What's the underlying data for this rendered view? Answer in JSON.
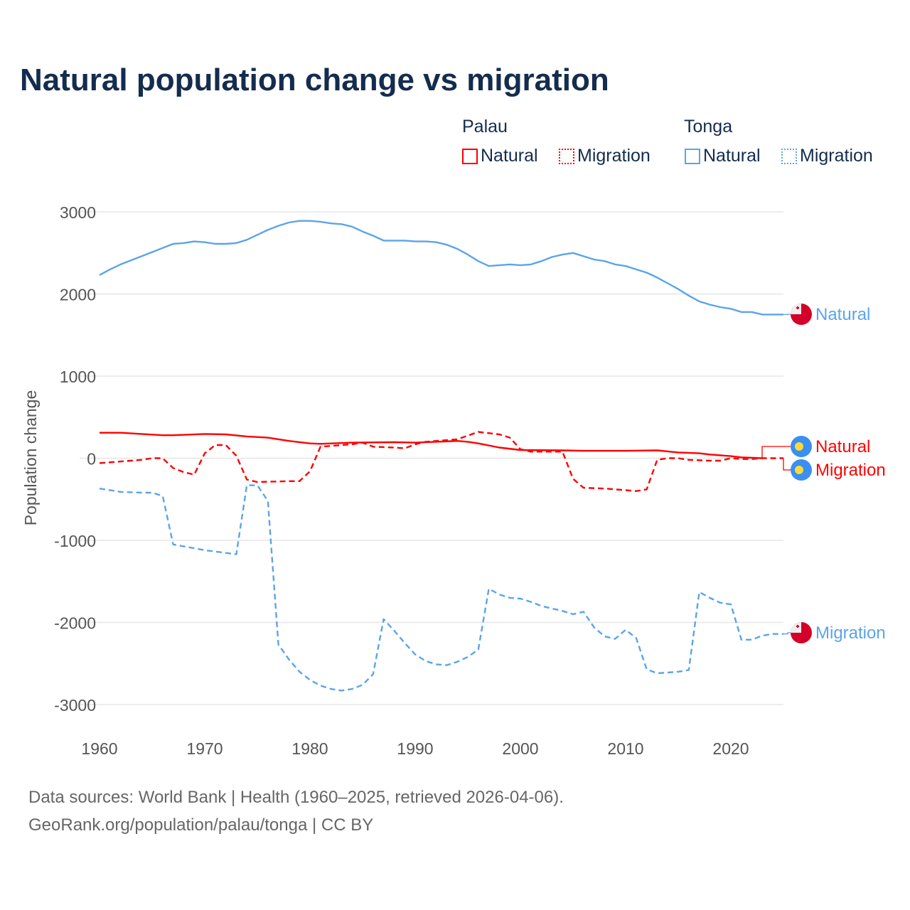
{
  "title": "Natural population change vs migration",
  "legend": {
    "groups": [
      {
        "name": "Palau",
        "items": [
          "Natural",
          "Migration"
        ],
        "color": "#ff0000"
      },
      {
        "name": "Tonga",
        "items": [
          "Natural",
          "Migration"
        ],
        "color": "#5ba4ea"
      }
    ]
  },
  "footer": {
    "line1": "Data sources: World Bank | Health (1960–2025, retrieved 2026-04-06).",
    "line2": "GeoRank.org/population/palau/tonga | CC BY"
  },
  "chart_data": {
    "type": "line",
    "title": "Natural population change vs migration",
    "xlabel": "",
    "ylabel": "Population change",
    "xlim": [
      1960,
      2025
    ],
    "ylim": [
      -3000,
      3000
    ],
    "xticks": [
      "1960",
      "1970",
      "1980",
      "1990",
      "2000",
      "2010",
      "2020"
    ],
    "yticks": [
      "3000",
      "2000",
      "1000",
      "0",
      "-1000",
      "-2000",
      "-3000"
    ],
    "grid": true,
    "series": [
      {
        "name": "Tonga Natural",
        "country": "Tonga",
        "label": "Natural",
        "color": "#5ba4ea",
        "dash": false,
        "points": [
          [
            1960,
            2230
          ],
          [
            1961,
            2300
          ],
          [
            1962,
            2360
          ],
          [
            1963,
            2410
          ],
          [
            1964,
            2460
          ],
          [
            1965,
            2510
          ],
          [
            1966,
            2560
          ],
          [
            1967,
            2610
          ],
          [
            1968,
            2620
          ],
          [
            1969,
            2640
          ],
          [
            1970,
            2630
          ],
          [
            1971,
            2610
          ],
          [
            1972,
            2610
          ],
          [
            1973,
            2620
          ],
          [
            1974,
            2660
          ],
          [
            1975,
            2720
          ],
          [
            1976,
            2780
          ],
          [
            1977,
            2830
          ],
          [
            1978,
            2870
          ],
          [
            1979,
            2890
          ],
          [
            1980,
            2890
          ],
          [
            1981,
            2880
          ],
          [
            1982,
            2860
          ],
          [
            1983,
            2850
          ],
          [
            1984,
            2820
          ],
          [
            1985,
            2760
          ],
          [
            1986,
            2710
          ],
          [
            1987,
            2650
          ],
          [
            1988,
            2650
          ],
          [
            1989,
            2650
          ],
          [
            1990,
            2640
          ],
          [
            1991,
            2640
          ],
          [
            1992,
            2630
          ],
          [
            1993,
            2600
          ],
          [
            1994,
            2550
          ],
          [
            1995,
            2480
          ],
          [
            1996,
            2400
          ],
          [
            1997,
            2340
          ],
          [
            1998,
            2350
          ],
          [
            1999,
            2360
          ],
          [
            2000,
            2350
          ],
          [
            2001,
            2360
          ],
          [
            2002,
            2400
          ],
          [
            2003,
            2450
          ],
          [
            2004,
            2480
          ],
          [
            2005,
            2500
          ],
          [
            2006,
            2460
          ],
          [
            2007,
            2420
          ],
          [
            2008,
            2400
          ],
          [
            2009,
            2360
          ],
          [
            2010,
            2340
          ],
          [
            2011,
            2300
          ],
          [
            2012,
            2260
          ],
          [
            2013,
            2200
          ],
          [
            2014,
            2130
          ],
          [
            2015,
            2060
          ],
          [
            2016,
            1980
          ],
          [
            2017,
            1910
          ],
          [
            2018,
            1870
          ],
          [
            2019,
            1840
          ],
          [
            2020,
            1820
          ],
          [
            2021,
            1780
          ],
          [
            2022,
            1780
          ],
          [
            2023,
            1750
          ],
          [
            2024,
            1750
          ],
          [
            2025,
            1750
          ]
        ]
      },
      {
        "name": "Tonga Migration",
        "country": "Tonga",
        "label": "Migration",
        "color": "#5ba4ea",
        "dash": true,
        "points": [
          [
            1960,
            -370
          ],
          [
            1962,
            -410
          ],
          [
            1964,
            -420
          ],
          [
            1965,
            -420
          ],
          [
            1966,
            -460
          ],
          [
            1967,
            -1050
          ],
          [
            1970,
            -1120
          ],
          [
            1973,
            -1170
          ],
          [
            1974,
            -330
          ],
          [
            1975,
            -330
          ],
          [
            1976,
            -520
          ],
          [
            1977,
            -2270
          ],
          [
            1978,
            -2450
          ],
          [
            1979,
            -2600
          ],
          [
            1980,
            -2700
          ],
          [
            1981,
            -2770
          ],
          [
            1982,
            -2810
          ],
          [
            1983,
            -2830
          ],
          [
            1984,
            -2810
          ],
          [
            1985,
            -2760
          ],
          [
            1986,
            -2630
          ],
          [
            1987,
            -1960
          ],
          [
            1988,
            -2100
          ],
          [
            1989,
            -2250
          ],
          [
            1990,
            -2390
          ],
          [
            1991,
            -2470
          ],
          [
            1992,
            -2510
          ],
          [
            1993,
            -2520
          ],
          [
            1994,
            -2480
          ],
          [
            1995,
            -2420
          ],
          [
            1996,
            -2330
          ],
          [
            1997,
            -1590
          ],
          [
            1998,
            -1660
          ],
          [
            1999,
            -1700
          ],
          [
            2000,
            -1710
          ],
          [
            2001,
            -1750
          ],
          [
            2002,
            -1800
          ],
          [
            2003,
            -1830
          ],
          [
            2004,
            -1860
          ],
          [
            2005,
            -1900
          ],
          [
            2006,
            -1870
          ],
          [
            2007,
            -2060
          ],
          [
            2008,
            -2170
          ],
          [
            2009,
            -2200
          ],
          [
            2010,
            -2090
          ],
          [
            2011,
            -2190
          ],
          [
            2012,
            -2570
          ],
          [
            2013,
            -2620
          ],
          [
            2014,
            -2610
          ],
          [
            2015,
            -2600
          ],
          [
            2016,
            -2580
          ],
          [
            2017,
            -1630
          ],
          [
            2018,
            -1700
          ],
          [
            2019,
            -1760
          ],
          [
            2020,
            -1780
          ],
          [
            2021,
            -2210
          ],
          [
            2022,
            -2210
          ],
          [
            2023,
            -2160
          ],
          [
            2024,
            -2140
          ],
          [
            2025,
            -2140
          ]
        ]
      },
      {
        "name": "Palau Natural",
        "country": "Palau",
        "label": "Natural",
        "color": "#ff0000",
        "dash": false,
        "points": [
          [
            1960,
            310
          ],
          [
            1962,
            310
          ],
          [
            1964,
            295
          ],
          [
            1966,
            280
          ],
          [
            1967,
            280
          ],
          [
            1970,
            295
          ],
          [
            1972,
            290
          ],
          [
            1974,
            265
          ],
          [
            1976,
            250
          ],
          [
            1978,
            210
          ],
          [
            1980,
            180
          ],
          [
            1981,
            175
          ],
          [
            1984,
            190
          ],
          [
            1988,
            195
          ],
          [
            1990,
            190
          ],
          [
            1992,
            200
          ],
          [
            1994,
            210
          ],
          [
            1995,
            200
          ],
          [
            1996,
            180
          ],
          [
            1998,
            130
          ],
          [
            2000,
            100
          ],
          [
            2004,
            95
          ],
          [
            2006,
            90
          ],
          [
            2010,
            90
          ],
          [
            2013,
            95
          ],
          [
            2015,
            70
          ],
          [
            2017,
            60
          ],
          [
            2018,
            45
          ],
          [
            2020,
            25
          ],
          [
            2021,
            10
          ],
          [
            2023,
            0
          ]
        ]
      },
      {
        "name": "Palau Migration",
        "country": "Palau",
        "label": "Migration",
        "color": "#ff0000",
        "dash": true,
        "points": [
          [
            1960,
            -60
          ],
          [
            1962,
            -40
          ],
          [
            1964,
            -20
          ],
          [
            1965,
            0
          ],
          [
            1966,
            0
          ],
          [
            1967,
            -120
          ],
          [
            1968,
            -170
          ],
          [
            1969,
            -200
          ],
          [
            1970,
            60
          ],
          [
            1971,
            160
          ],
          [
            1972,
            160
          ],
          [
            1973,
            30
          ],
          [
            1974,
            -260
          ],
          [
            1975,
            -290
          ],
          [
            1978,
            -280
          ],
          [
            1979,
            -280
          ],
          [
            1980,
            -160
          ],
          [
            1981,
            140
          ],
          [
            1984,
            170
          ],
          [
            1985,
            190
          ],
          [
            1986,
            140
          ],
          [
            1988,
            130
          ],
          [
            1989,
            120
          ],
          [
            1990,
            170
          ],
          [
            1991,
            200
          ],
          [
            1992,
            210
          ],
          [
            1994,
            230
          ],
          [
            1996,
            320
          ],
          [
            1998,
            290
          ],
          [
            1999,
            250
          ],
          [
            2000,
            110
          ],
          [
            2001,
            80
          ],
          [
            2004,
            80
          ],
          [
            2005,
            -250
          ],
          [
            2006,
            -360
          ],
          [
            2008,
            -370
          ],
          [
            2010,
            -390
          ],
          [
            2011,
            -400
          ],
          [
            2012,
            -380
          ],
          [
            2013,
            -20
          ],
          [
            2014,
            0
          ],
          [
            2015,
            0
          ],
          [
            2016,
            -20
          ],
          [
            2018,
            -30
          ],
          [
            2019,
            -30
          ],
          [
            2020,
            0
          ],
          [
            2021,
            -10
          ],
          [
            2022,
            -10
          ],
          [
            2023,
            0
          ],
          [
            2024,
            0
          ],
          [
            2025,
            0
          ]
        ]
      }
    ]
  }
}
